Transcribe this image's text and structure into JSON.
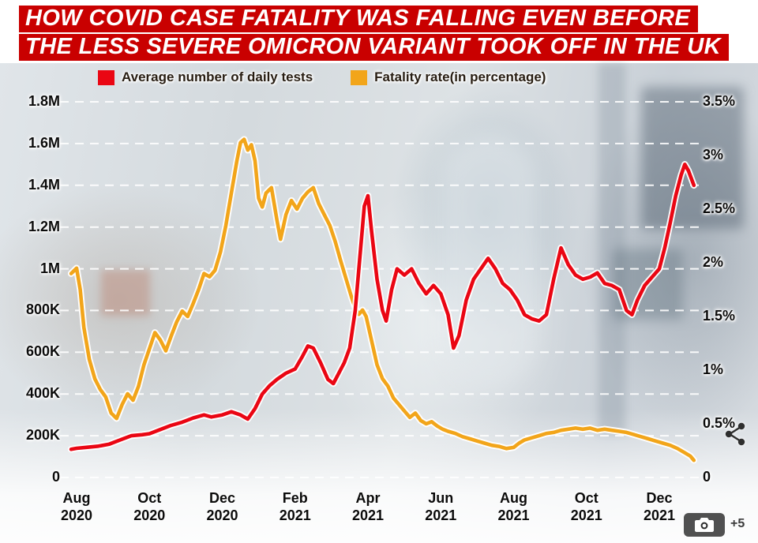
{
  "headline": {
    "line1": "HOW COVID CASE FATALITY WAS FALLING EVEN BEFORE",
    "line2": "THE LESS SEVERE OMICRON VARIANT TOOK OFF IN THE UK"
  },
  "colors": {
    "headline_bg": "#c90000",
    "headline_text": "#ffffff",
    "tests_line": "#ea0613",
    "fatality_line": "#f2a51a",
    "grid": "#ffffff"
  },
  "legend": [
    {
      "label": "Average number of daily tests",
      "color": "#ea0613"
    },
    {
      "label": "Fatality rate(in percentage)",
      "color": "#f2a51a"
    }
  ],
  "overlay": {
    "camera_more": "+5"
  },
  "chart_data": {
    "type": "line",
    "title": "",
    "grid": "horizontal-dashed-white",
    "legend_position": "top",
    "x_axis": {
      "unit": "months_from_Aug_2020",
      "ticks": [
        {
          "month": "Aug",
          "year": "2020",
          "m": 0
        },
        {
          "month": "Oct",
          "year": "2020",
          "m": 2
        },
        {
          "month": "Dec",
          "year": "2020",
          "m": 4
        },
        {
          "month": "Feb",
          "year": "2021",
          "m": 6
        },
        {
          "month": "Apr",
          "year": "2021",
          "m": 8
        },
        {
          "month": "Jun",
          "year": "2021",
          "m": 10
        },
        {
          "month": "Aug",
          "year": "2021",
          "m": 12
        },
        {
          "month": "Oct",
          "year": "2021",
          "m": 14
        },
        {
          "month": "Dec",
          "year": "2021",
          "m": 16
        }
      ]
    },
    "y_left": {
      "name": "Average number of daily tests",
      "unit": "millions",
      "range": [
        0,
        1.8
      ],
      "ticks": [
        {
          "label": "1.8M",
          "value": 1.8
        },
        {
          "label": "1.6M",
          "value": 1.6
        },
        {
          "label": "1.4M",
          "value": 1.4
        },
        {
          "label": "1.2M",
          "value": 1.2
        },
        {
          "label": "1M",
          "value": 1.0
        },
        {
          "label": "800K",
          "value": 0.8
        },
        {
          "label": "600K",
          "value": 0.6
        },
        {
          "label": "400K",
          "value": 0.4
        },
        {
          "label": "200K",
          "value": 0.2
        },
        {
          "label": "0",
          "value": 0
        }
      ]
    },
    "y_right": {
      "name": "Fatality rate",
      "unit": "percent",
      "range": [
        0,
        3.5
      ],
      "ticks": [
        {
          "label": "3.5%",
          "value": 3.5
        },
        {
          "label": "3%",
          "value": 3.0
        },
        {
          "label": "2.5%",
          "value": 2.5
        },
        {
          "label": "2%",
          "value": 2.0
        },
        {
          "label": "1.5%",
          "value": 1.5
        },
        {
          "label": "1%",
          "value": 1.0
        },
        {
          "label": "0.5%",
          "value": 0.5
        },
        {
          "label": "0",
          "value": 0
        }
      ]
    },
    "series": [
      {
        "name": "Fatality rate(in percentage)",
        "axis": "right",
        "color": "#f2a51a",
        "points": [
          [
            -0.15,
            1.9
          ],
          [
            0,
            1.95
          ],
          [
            0.1,
            1.75
          ],
          [
            0.2,
            1.4
          ],
          [
            0.35,
            1.1
          ],
          [
            0.5,
            0.92
          ],
          [
            0.65,
            0.82
          ],
          [
            0.8,
            0.75
          ],
          [
            0.95,
            0.6
          ],
          [
            1.1,
            0.55
          ],
          [
            1.25,
            0.68
          ],
          [
            1.4,
            0.78
          ],
          [
            1.55,
            0.72
          ],
          [
            1.7,
            0.85
          ],
          [
            1.85,
            1.05
          ],
          [
            2,
            1.2
          ],
          [
            2.15,
            1.35
          ],
          [
            2.3,
            1.28
          ],
          [
            2.45,
            1.18
          ],
          [
            2.6,
            1.32
          ],
          [
            2.75,
            1.45
          ],
          [
            2.9,
            1.55
          ],
          [
            3.05,
            1.5
          ],
          [
            3.2,
            1.62
          ],
          [
            3.35,
            1.75
          ],
          [
            3.5,
            1.9
          ],
          [
            3.65,
            1.87
          ],
          [
            3.8,
            1.93
          ],
          [
            3.95,
            2.1
          ],
          [
            4.1,
            2.35
          ],
          [
            4.25,
            2.65
          ],
          [
            4.4,
            2.95
          ],
          [
            4.5,
            3.12
          ],
          [
            4.6,
            3.15
          ],
          [
            4.7,
            3.05
          ],
          [
            4.8,
            3.1
          ],
          [
            4.9,
            2.95
          ],
          [
            5,
            2.6
          ],
          [
            5.1,
            2.52
          ],
          [
            5.2,
            2.65
          ],
          [
            5.35,
            2.7
          ],
          [
            5.5,
            2.4
          ],
          [
            5.6,
            2.22
          ],
          [
            5.75,
            2.45
          ],
          [
            5.9,
            2.58
          ],
          [
            6.05,
            2.5
          ],
          [
            6.2,
            2.6
          ],
          [
            6.35,
            2.66
          ],
          [
            6.5,
            2.7
          ],
          [
            6.65,
            2.55
          ],
          [
            6.8,
            2.45
          ],
          [
            6.95,
            2.35
          ],
          [
            7.1,
            2.2
          ],
          [
            7.25,
            2.02
          ],
          [
            7.4,
            1.85
          ],
          [
            7.55,
            1.68
          ],
          [
            7.65,
            1.58
          ],
          [
            7.75,
            1.52
          ],
          [
            7.85,
            1.56
          ],
          [
            7.95,
            1.5
          ],
          [
            8.05,
            1.35
          ],
          [
            8.15,
            1.2
          ],
          [
            8.25,
            1.05
          ],
          [
            8.4,
            0.92
          ],
          [
            8.55,
            0.85
          ],
          [
            8.7,
            0.74
          ],
          [
            8.85,
            0.68
          ],
          [
            9,
            0.62
          ],
          [
            9.15,
            0.56
          ],
          [
            9.3,
            0.6
          ],
          [
            9.45,
            0.53
          ],
          [
            9.6,
            0.5
          ],
          [
            9.75,
            0.52
          ],
          [
            9.9,
            0.48
          ],
          [
            10.05,
            0.45
          ],
          [
            10.2,
            0.43
          ],
          [
            10.4,
            0.41
          ],
          [
            10.6,
            0.38
          ],
          [
            10.8,
            0.36
          ],
          [
            11,
            0.34
          ],
          [
            11.2,
            0.32
          ],
          [
            11.4,
            0.3
          ],
          [
            11.6,
            0.29
          ],
          [
            11.8,
            0.27
          ],
          [
            12,
            0.28
          ],
          [
            12.15,
            0.32
          ],
          [
            12.3,
            0.35
          ],
          [
            12.5,
            0.37
          ],
          [
            12.7,
            0.39
          ],
          [
            12.9,
            0.41
          ],
          [
            13.1,
            0.42
          ],
          [
            13.3,
            0.44
          ],
          [
            13.5,
            0.45
          ],
          [
            13.7,
            0.46
          ],
          [
            13.9,
            0.45
          ],
          [
            14.1,
            0.46
          ],
          [
            14.3,
            0.44
          ],
          [
            14.5,
            0.45
          ],
          [
            14.7,
            0.44
          ],
          [
            14.9,
            0.43
          ],
          [
            15.1,
            0.42
          ],
          [
            15.3,
            0.4
          ],
          [
            15.5,
            0.38
          ],
          [
            15.7,
            0.36
          ],
          [
            15.9,
            0.34
          ],
          [
            16.1,
            0.32
          ],
          [
            16.3,
            0.3
          ],
          [
            16.5,
            0.27
          ],
          [
            16.7,
            0.23
          ],
          [
            16.85,
            0.2
          ],
          [
            16.95,
            0.16
          ]
        ]
      },
      {
        "name": "Average number of daily tests",
        "axis": "left",
        "color": "#ea0613",
        "points": [
          [
            -0.15,
            0.135
          ],
          [
            0,
            0.14
          ],
          [
            0.3,
            0.145
          ],
          [
            0.6,
            0.15
          ],
          [
            0.9,
            0.16
          ],
          [
            1.2,
            0.18
          ],
          [
            1.5,
            0.2
          ],
          [
            1.8,
            0.205
          ],
          [
            2,
            0.21
          ],
          [
            2.3,
            0.23
          ],
          [
            2.6,
            0.25
          ],
          [
            2.9,
            0.265
          ],
          [
            3.2,
            0.285
          ],
          [
            3.5,
            0.3
          ],
          [
            3.7,
            0.29
          ],
          [
            4,
            0.3
          ],
          [
            4.25,
            0.315
          ],
          [
            4.5,
            0.3
          ],
          [
            4.7,
            0.28
          ],
          [
            4.9,
            0.33
          ],
          [
            5.1,
            0.4
          ],
          [
            5.3,
            0.44
          ],
          [
            5.5,
            0.47
          ],
          [
            5.75,
            0.5
          ],
          [
            6,
            0.52
          ],
          [
            6.2,
            0.58
          ],
          [
            6.35,
            0.63
          ],
          [
            6.5,
            0.62
          ],
          [
            6.7,
            0.55
          ],
          [
            6.9,
            0.47
          ],
          [
            7.05,
            0.45
          ],
          [
            7.2,
            0.5
          ],
          [
            7.35,
            0.55
          ],
          [
            7.5,
            0.62
          ],
          [
            7.65,
            0.8
          ],
          [
            7.8,
            1.1
          ],
          [
            7.9,
            1.3
          ],
          [
            8,
            1.35
          ],
          [
            8.1,
            1.18
          ],
          [
            8.25,
            0.95
          ],
          [
            8.4,
            0.8
          ],
          [
            8.5,
            0.75
          ],
          [
            8.65,
            0.9
          ],
          [
            8.8,
            1
          ],
          [
            9,
            0.97
          ],
          [
            9.2,
            1
          ],
          [
            9.4,
            0.93
          ],
          [
            9.6,
            0.88
          ],
          [
            9.8,
            0.92
          ],
          [
            10,
            0.88
          ],
          [
            10.2,
            0.78
          ],
          [
            10.35,
            0.62
          ],
          [
            10.5,
            0.68
          ],
          [
            10.7,
            0.85
          ],
          [
            10.9,
            0.95
          ],
          [
            11.1,
            1
          ],
          [
            11.3,
            1.05
          ],
          [
            11.5,
            1
          ],
          [
            11.7,
            0.93
          ],
          [
            11.9,
            0.9
          ],
          [
            12.1,
            0.85
          ],
          [
            12.3,
            0.78
          ],
          [
            12.5,
            0.76
          ],
          [
            12.7,
            0.75
          ],
          [
            12.9,
            0.78
          ],
          [
            13.1,
            0.95
          ],
          [
            13.3,
            1.1
          ],
          [
            13.5,
            1.02
          ],
          [
            13.7,
            0.97
          ],
          [
            13.9,
            0.95
          ],
          [
            14.1,
            0.96
          ],
          [
            14.3,
            0.98
          ],
          [
            14.5,
            0.93
          ],
          [
            14.7,
            0.92
          ],
          [
            14.9,
            0.9
          ],
          [
            15.1,
            0.8
          ],
          [
            15.25,
            0.78
          ],
          [
            15.4,
            0.85
          ],
          [
            15.6,
            0.92
          ],
          [
            15.8,
            0.96
          ],
          [
            16,
            1
          ],
          [
            16.15,
            1.1
          ],
          [
            16.3,
            1.22
          ],
          [
            16.45,
            1.35
          ],
          [
            16.6,
            1.45
          ],
          [
            16.7,
            1.5
          ],
          [
            16.8,
            1.47
          ],
          [
            16.95,
            1.4
          ]
        ]
      }
    ]
  }
}
